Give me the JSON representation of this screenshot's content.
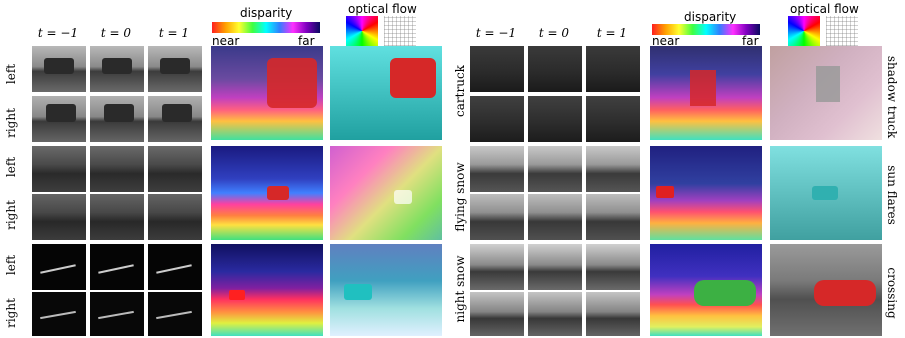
{
  "time_labels": [
    "t = −1",
    "t = 0",
    "t = 1"
  ],
  "header": {
    "disparity": "disparity",
    "near": "near",
    "far": "far",
    "optical_flow": "optical flow"
  },
  "left_row_labels": [
    "left",
    "right",
    "left",
    "right",
    "left",
    "right"
  ],
  "middle_scene_labels": [
    "cartruck",
    "flying snow",
    "night snow"
  ],
  "right_scene_labels": [
    "shadow truck",
    "sun flares",
    "crossing"
  ],
  "colors": {
    "disparity_near": "#ff1a1a",
    "disparity_far": "#1a0a8c",
    "car_red": "#d62828",
    "car_green": "#3cb043"
  }
}
